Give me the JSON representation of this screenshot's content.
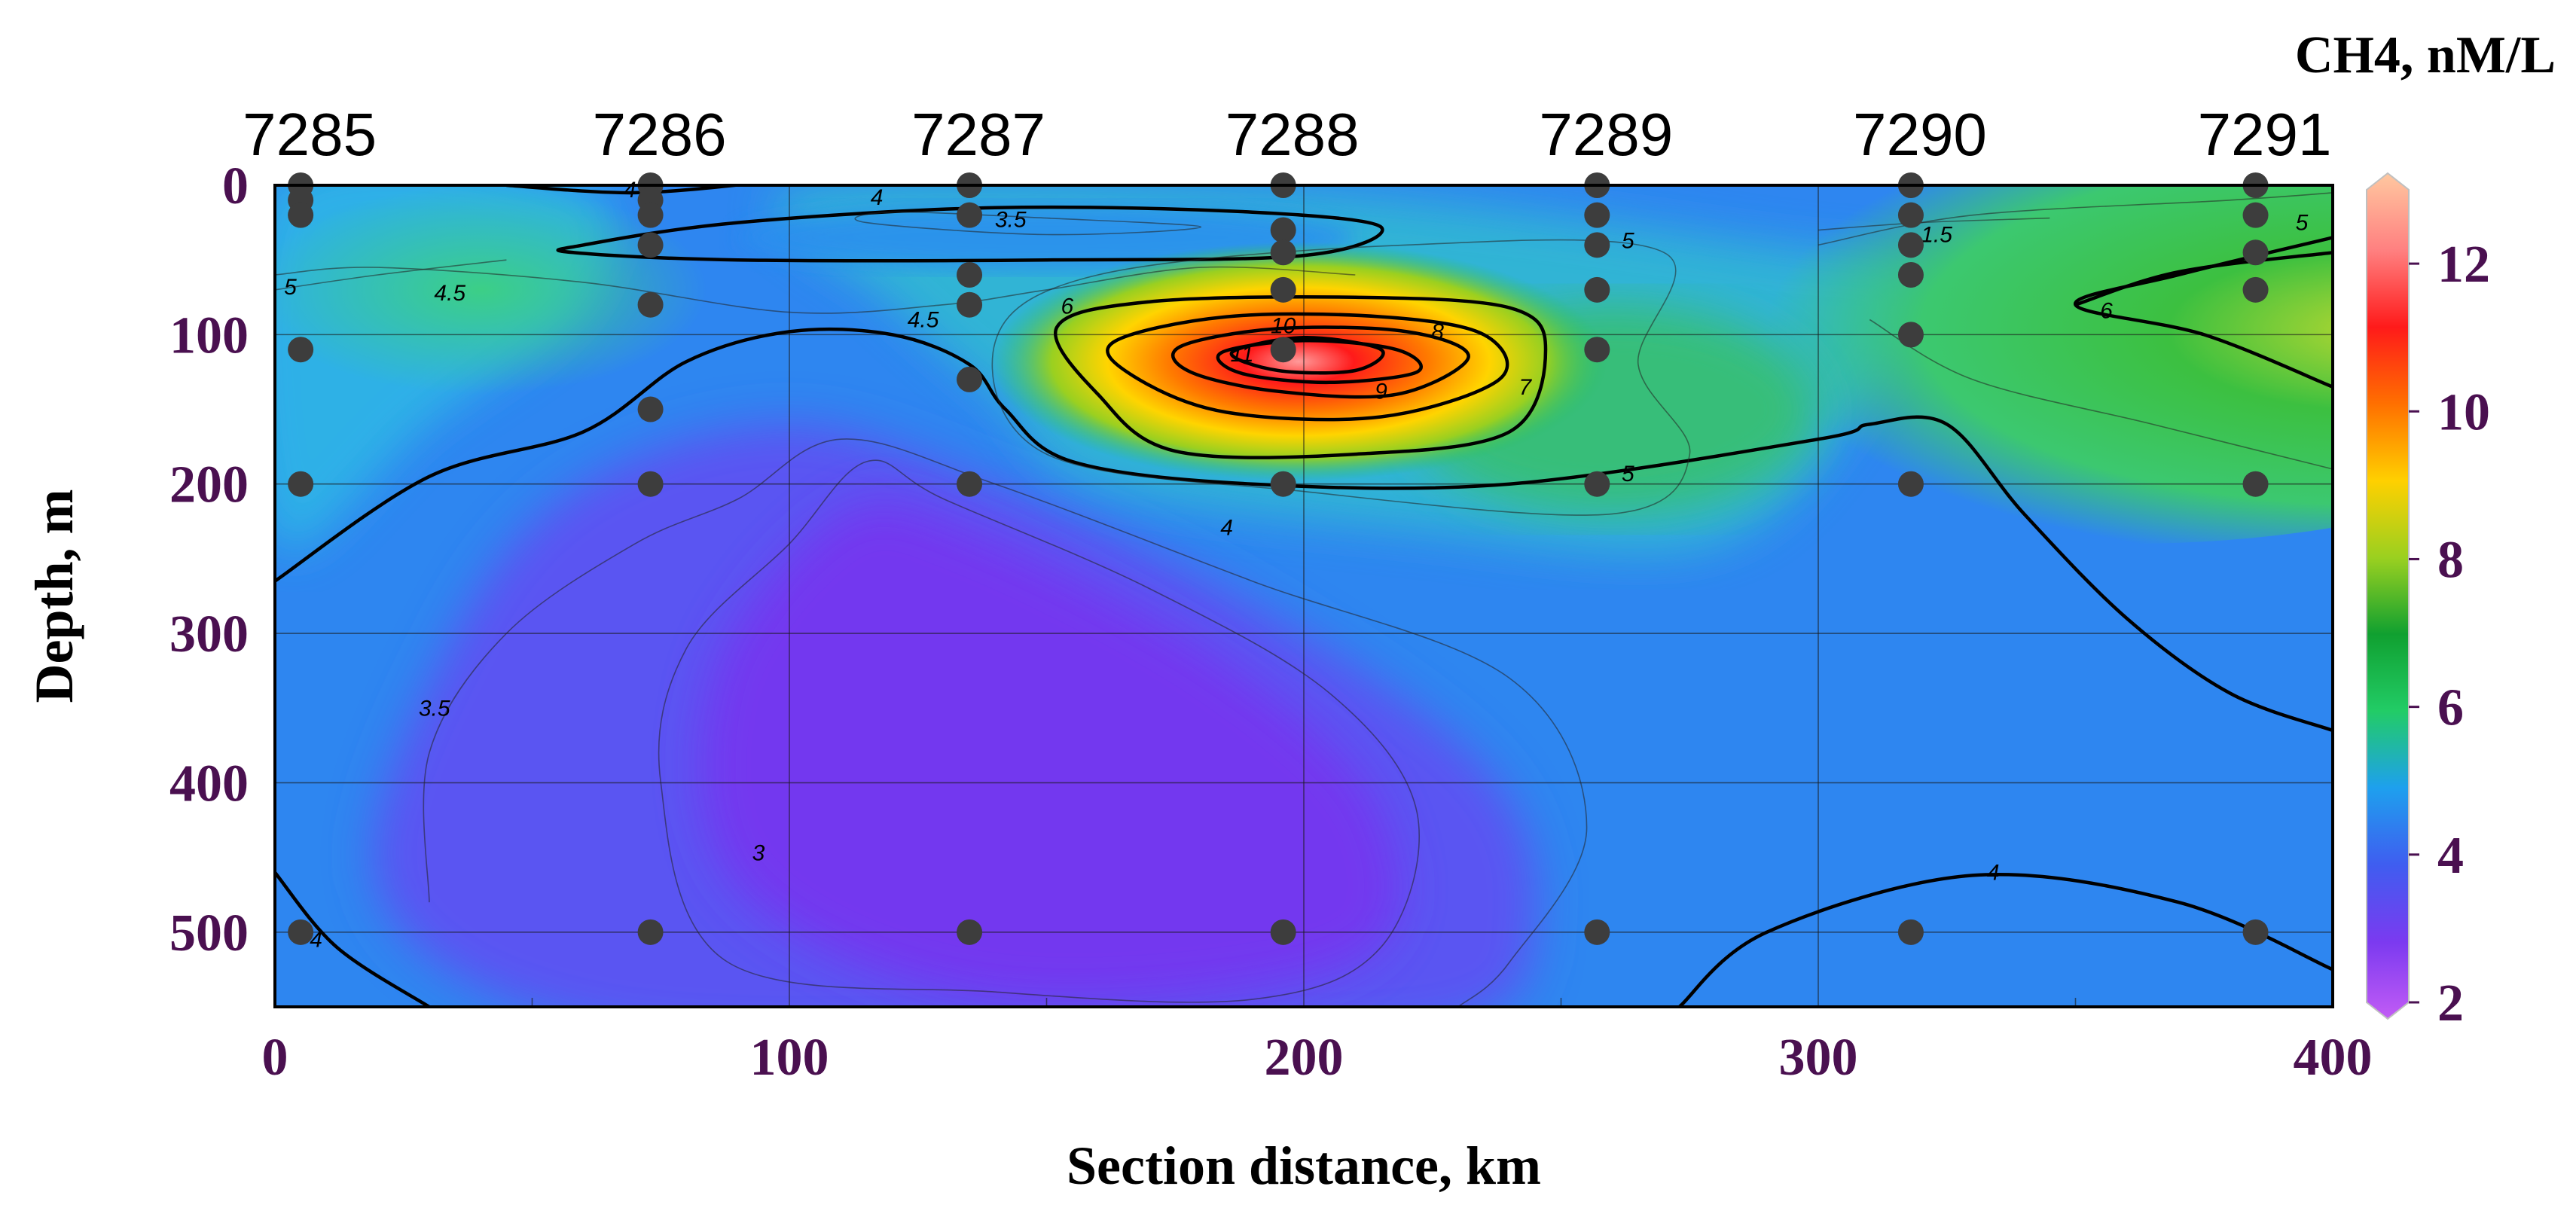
{
  "chart_data": {
    "type": "heatmap",
    "title": "",
    "xlabel": "Section distance, km",
    "ylabel": "Depth, m",
    "xlim": [
      0,
      400
    ],
    "ylim": [
      0,
      550
    ],
    "y_inverted": true,
    "x_ticks": [
      "0",
      "100",
      "200",
      "300",
      "400"
    ],
    "y_ticks": [
      "0",
      "100",
      "200",
      "300",
      "400",
      "500"
    ],
    "grid": true,
    "colorbar": {
      "title": "CH4, nM/L",
      "range": [
        2,
        13
      ],
      "ticks": [
        "2",
        "4",
        "6",
        "8",
        "10",
        "12"
      ],
      "placement": "right",
      "colors": [
        "#c25cf5",
        "#7b3af0",
        "#3f5df0",
        "#1ea0ee",
        "#22cc66",
        "#10a030",
        "#9ad020",
        "#ffd000",
        "#ff7000",
        "#ff1a1a",
        "#ff8080",
        "#ffc8a0"
      ]
    },
    "stations": [
      {
        "name": "7285",
        "x": 5,
        "depths": [
          0,
          10,
          20,
          110,
          200,
          500
        ]
      },
      {
        "name": "7286",
        "x": 73,
        "depths": [
          0,
          10,
          20,
          40,
          80,
          150,
          200,
          500
        ]
      },
      {
        "name": "7287",
        "x": 135,
        "depths": [
          0,
          20,
          60,
          80,
          130,
          200,
          500
        ]
      },
      {
        "name": "7288",
        "x": 196,
        "depths": [
          0,
          30,
          45,
          70,
          110,
          200,
          500
        ]
      },
      {
        "name": "7289",
        "x": 257,
        "depths": [
          0,
          20,
          40,
          70,
          110,
          200,
          500
        ]
      },
      {
        "name": "7290",
        "x": 318,
        "depths": [
          0,
          20,
          40,
          60,
          100,
          200,
          500
        ]
      },
      {
        "name": "7291",
        "x": 385,
        "depths": [
          0,
          20,
          45,
          70,
          200,
          500
        ]
      }
    ],
    "contour_labels": [
      "3",
      "3.5",
      "4",
      "4.5",
      "5",
      "6",
      "7",
      "8",
      "9",
      "10",
      "11"
    ],
    "contour_label_marks": [
      {
        "text": "4",
        "x": 69,
        "y": 3
      },
      {
        "text": "4",
        "x": 117,
        "y": 8
      },
      {
        "text": "3.5",
        "x": 143,
        "y": 23
      },
      {
        "text": "5",
        "x": 3,
        "y": 68
      },
      {
        "text": "4.5",
        "x": 34,
        "y": 72
      },
      {
        "text": "4.5",
        "x": 126,
        "y": 90
      },
      {
        "text": "6",
        "x": 154,
        "y": 81
      },
      {
        "text": "10",
        "x": 196,
        "y": 94
      },
      {
        "text": "11",
        "x": 188,
        "y": 113
      },
      {
        "text": "8",
        "x": 226,
        "y": 98
      },
      {
        "text": "9",
        "x": 215,
        "y": 138
      },
      {
        "text": "7",
        "x": 243,
        "y": 135
      },
      {
        "text": "5",
        "x": 263,
        "y": 37
      },
      {
        "text": "5",
        "x": 263,
        "y": 193
      },
      {
        "text": "4",
        "x": 185,
        "y": 229
      },
      {
        "text": "1.5",
        "x": 323,
        "y": 33
      },
      {
        "text": "6",
        "x": 356,
        "y": 84
      },
      {
        "text": "5",
        "x": 394,
        "y": 25
      },
      {
        "text": "3.5",
        "x": 31,
        "y": 350
      },
      {
        "text": "3",
        "x": 94,
        "y": 447
      },
      {
        "text": "4",
        "x": 334,
        "y": 460
      },
      {
        "text": "4",
        "x": 8,
        "y": 505
      }
    ]
  }
}
